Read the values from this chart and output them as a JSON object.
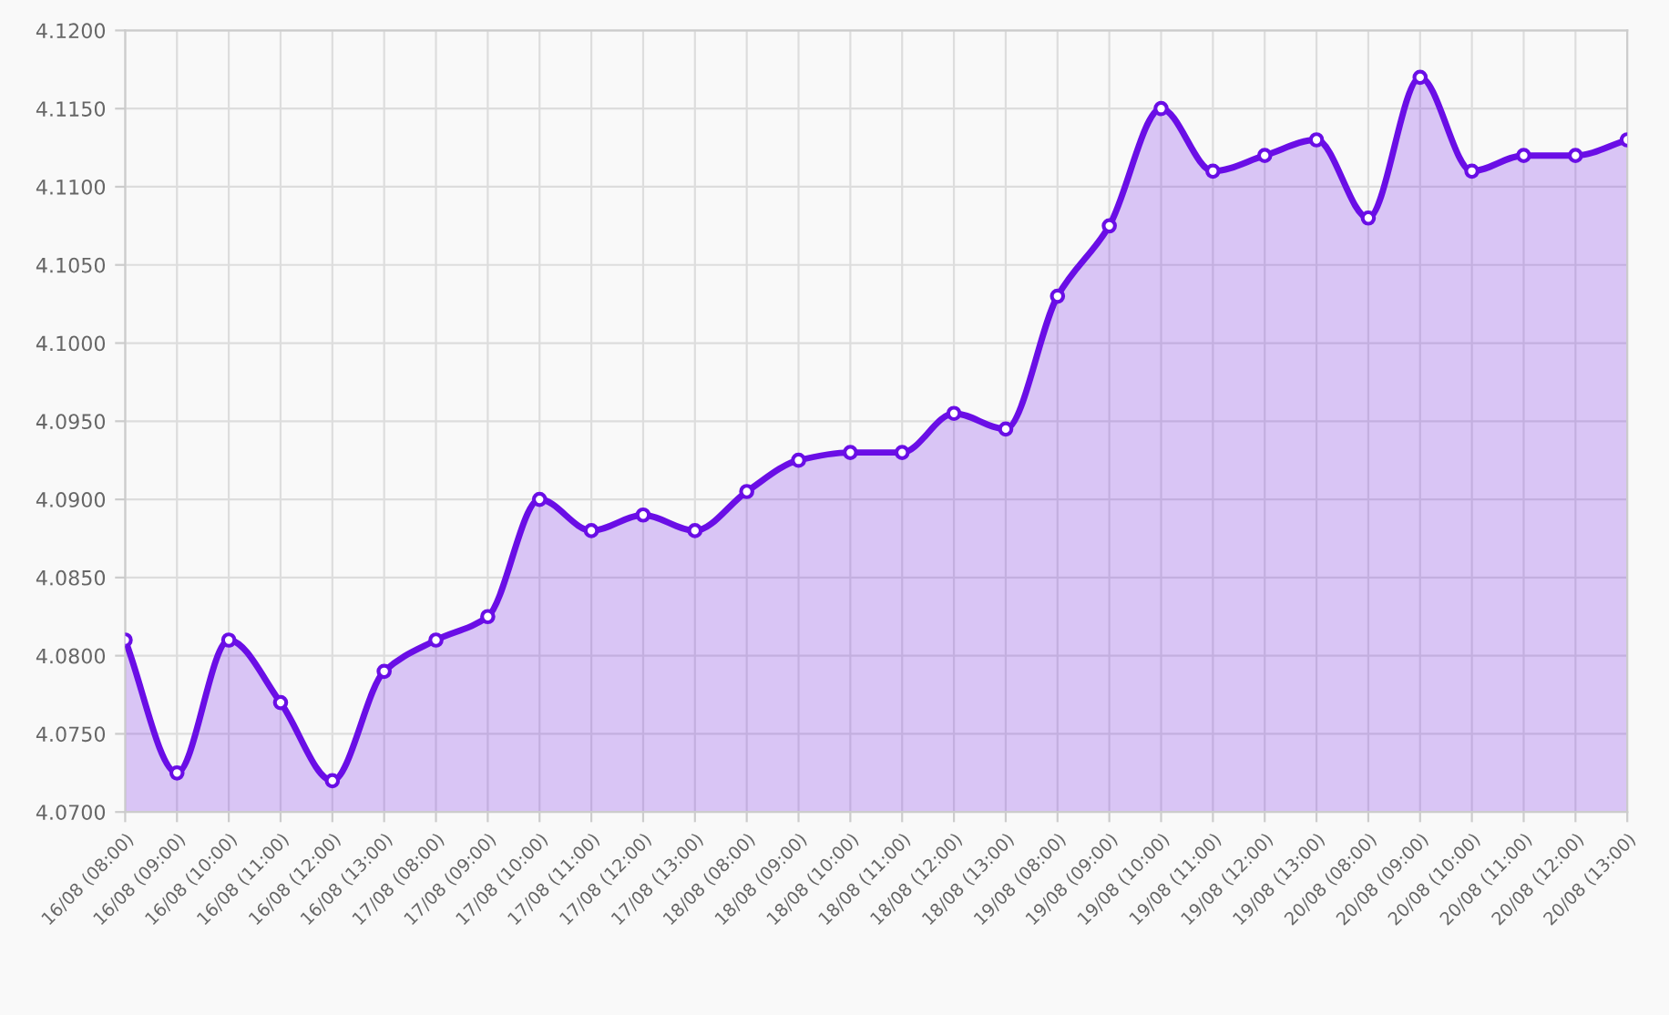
{
  "chart_data": {
    "type": "area",
    "categories": [
      "16/08 (08:00)",
      "16/08 (09:00)",
      "16/08 (10:00)",
      "16/08 (11:00)",
      "16/08 (12:00)",
      "16/08 (13:00)",
      "17/08 (08:00)",
      "17/08 (09:00)",
      "17/08 (10:00)",
      "17/08 (11:00)",
      "17/08 (12:00)",
      "17/08 (13:00)",
      "18/08 (08:00)",
      "18/08 (09:00)",
      "18/08 (10:00)",
      "18/08 (11:00)",
      "18/08 (12:00)",
      "18/08 (13:00)",
      "19/08 (08:00)",
      "19/08 (09:00)",
      "19/08 (10:00)",
      "19/08 (11:00)",
      "19/08 (12:00)",
      "19/08 (13:00)",
      "20/08 (08:00)",
      "20/08 (09:00)",
      "20/08 (10:00)",
      "20/08 (11:00)",
      "20/08 (12:00)",
      "20/08 (13:00)"
    ],
    "series": [
      {
        "color": "#6a0ee6",
        "values": [
          4.081,
          4.0725,
          4.081,
          4.077,
          4.072,
          4.079,
          4.081,
          4.0825,
          4.09,
          4.088,
          4.089,
          4.088,
          4.0905,
          4.0925,
          4.093,
          4.093,
          4.0955,
          4.0945,
          4.103,
          4.1075,
          4.115,
          4.111,
          4.112,
          4.113,
          4.108,
          4.117,
          4.111,
          4.112,
          4.112,
          4.113
        ]
      }
    ],
    "ylim": [
      4.07,
      4.12
    ],
    "yticks": [
      {
        "value": 4.07,
        "label": "4.0700"
      },
      {
        "value": 4.075,
        "label": "4.0750"
      },
      {
        "value": 4.08,
        "label": "4.0800"
      },
      {
        "value": 4.085,
        "label": "4.0850"
      },
      {
        "value": 4.09,
        "label": "4.0900"
      },
      {
        "value": 4.095,
        "label": "4.0950"
      },
      {
        "value": 4.1,
        "label": "4.1000"
      },
      {
        "value": 4.105,
        "label": "4.1050"
      },
      {
        "value": 4.11,
        "label": "4.1100"
      },
      {
        "value": 4.115,
        "label": "4.1150"
      },
      {
        "value": 4.12,
        "label": "4.1200"
      }
    ],
    "grid": true,
    "marker": "circle",
    "line_style": "solid"
  }
}
